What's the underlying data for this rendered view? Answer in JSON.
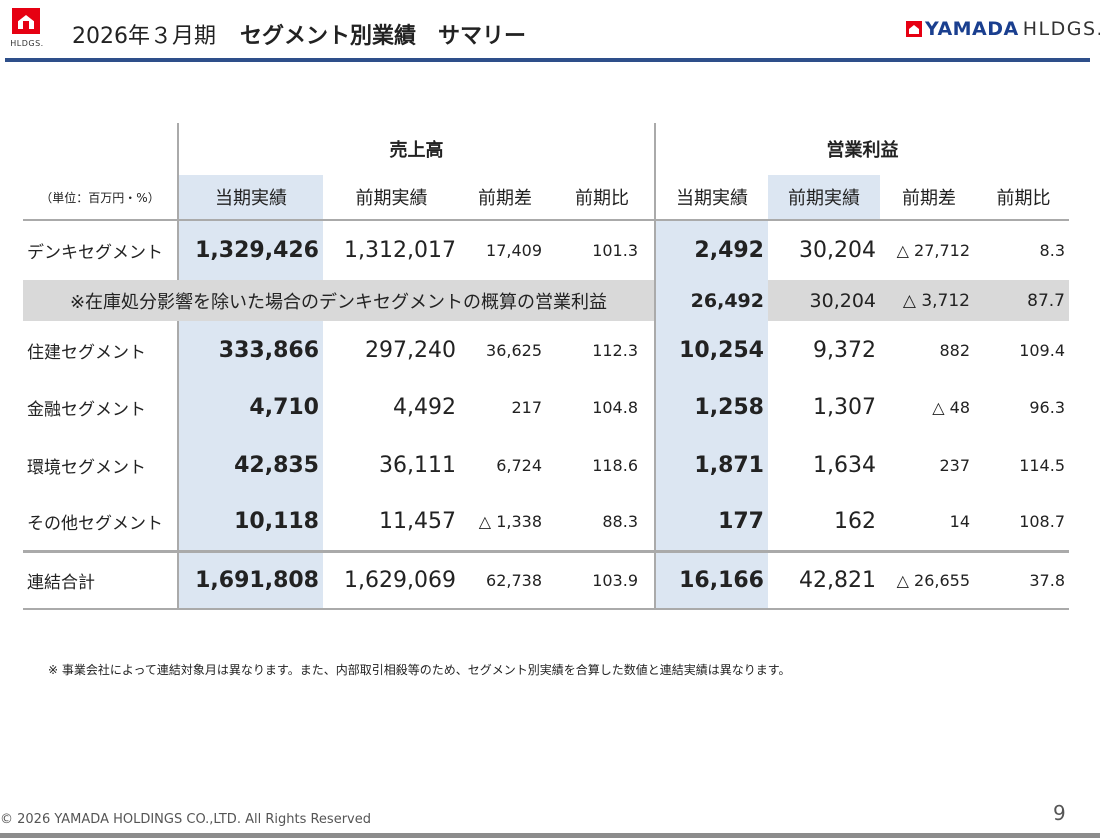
{
  "header": {
    "left_logo_text": "HLDGS.",
    "period": "2026年３月期",
    "title": "セグメント別業績　サマリー",
    "right_logo_brand": "YAMADA",
    "right_logo_suffix": "HLDGS."
  },
  "table": {
    "group_sales": "売上高",
    "group_op": "営業利益",
    "unit": "（単位：百万円・%）",
    "cols": [
      "当期実績",
      "前期実績",
      "前期差",
      "前期比",
      "当期実績",
      "前期実績",
      "前期差",
      "前期比"
    ],
    "rows": [
      {
        "label": "デンキセグメント",
        "v": [
          "1,329,426",
          "1,312,017",
          "17,409",
          "101.3",
          "2,492",
          "30,204",
          "△ 27,712",
          "8.3"
        ]
      },
      {
        "label": "住建セグメント",
        "v": [
          "333,866",
          "297,240",
          "36,625",
          "112.3",
          "10,254",
          "9,372",
          "882",
          "109.4"
        ]
      },
      {
        "label": "金融セグメント",
        "v": [
          "4,710",
          "4,492",
          "217",
          "104.8",
          "1,258",
          "1,307",
          "△ 48",
          "96.3"
        ]
      },
      {
        "label": "環境セグメント",
        "v": [
          "42,835",
          "36,111",
          "6,724",
          "118.6",
          "1,871",
          "1,634",
          "237",
          "114.5"
        ]
      },
      {
        "label": "その他セグメント",
        "v": [
          "10,118",
          "11,457",
          "△ 1,338",
          "88.3",
          "177",
          "162",
          "14",
          "108.7"
        ]
      }
    ],
    "note_row": {
      "label": "※在庫処分影響を除いた場合のデンキセグメントの概算の営業利益",
      "v": [
        "26,492",
        "30,204",
        "△ 3,712",
        "87.7"
      ]
    },
    "total": {
      "label": "連結合計",
      "v": [
        "1,691,808",
        "1,629,069",
        "62,738",
        "103.9",
        "16,166",
        "42,821",
        "△ 26,655",
        "37.8"
      ]
    }
  },
  "footnote": "※ 事業会社によって連結対象月は異なります。また、内部取引相殺等のため、セグメント別実績を合算した数値と連結実績は異なります。",
  "footer": {
    "copyright": "© 2026 YAMADA HOLDINGS CO.,LTD. All Rights Reserved",
    "page": "9"
  },
  "colors": {
    "accent_blue": "#2e4f8a",
    "current_period_bg": "#dce6f2",
    "note_row_bg": "#d9d9d9",
    "logo_red": "#e60012"
  }
}
